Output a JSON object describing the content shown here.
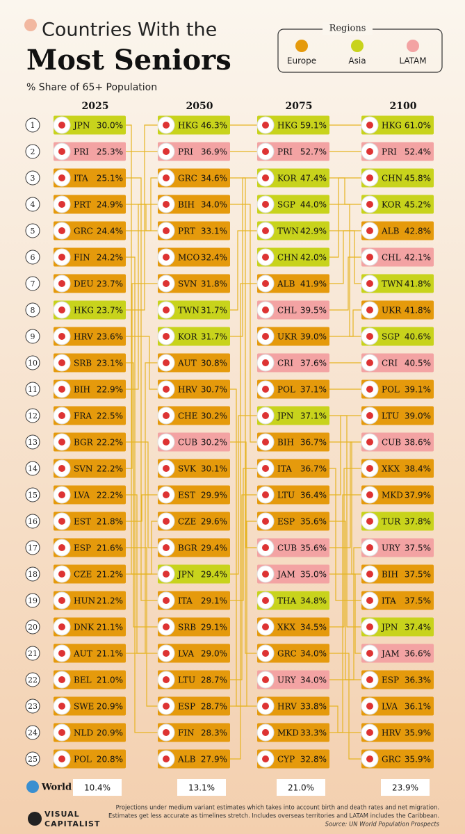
{
  "header": {
    "title_line1": "Countries With the",
    "title_line2": "Most Seniors",
    "subtitle": "% Share of 65+ Population"
  },
  "legend": {
    "title": "Regions",
    "items": [
      {
        "name": "Europe",
        "color": "#e59a0c"
      },
      {
        "name": "Asia",
        "color": "#c8d31c"
      },
      {
        "name": "LATAM",
        "color": "#f3a3a3"
      }
    ]
  },
  "ranks": [
    1,
    2,
    3,
    4,
    5,
    6,
    7,
    8,
    9,
    10,
    11,
    12,
    13,
    14,
    15,
    16,
    17,
    18,
    19,
    20,
    21,
    22,
    23,
    24,
    25
  ],
  "columns": [
    {
      "year": "2025",
      "entries": [
        {
          "code": "JPN",
          "value": "30.0%",
          "region": "Asia"
        },
        {
          "code": "PRI",
          "value": "25.3%",
          "region": "LATAM"
        },
        {
          "code": "ITA",
          "value": "25.1%",
          "region": "Europe"
        },
        {
          "code": "PRT",
          "value": "24.9%",
          "region": "Europe"
        },
        {
          "code": "GRC",
          "value": "24.4%",
          "region": "Europe"
        },
        {
          "code": "FIN",
          "value": "24.2%",
          "region": "Europe"
        },
        {
          "code": "DEU",
          "value": "23.7%",
          "region": "Europe"
        },
        {
          "code": "HKG",
          "value": "23.7%",
          "region": "Asia"
        },
        {
          "code": "HRV",
          "value": "23.6%",
          "region": "Europe"
        },
        {
          "code": "SRB",
          "value": "23.1%",
          "region": "Europe"
        },
        {
          "code": "BIH",
          "value": "22.9%",
          "region": "Europe"
        },
        {
          "code": "FRA",
          "value": "22.5%",
          "region": "Europe"
        },
        {
          "code": "BGR",
          "value": "22.2%",
          "region": "Europe"
        },
        {
          "code": "SVN",
          "value": "22.2%",
          "region": "Europe"
        },
        {
          "code": "LVA",
          "value": "22.2%",
          "region": "Europe"
        },
        {
          "code": "EST",
          "value": "21.8%",
          "region": "Europe"
        },
        {
          "code": "ESP",
          "value": "21.6%",
          "region": "Europe"
        },
        {
          "code": "CZE",
          "value": "21.2%",
          "region": "Europe"
        },
        {
          "code": "HUN",
          "value": "21.2%",
          "region": "Europe"
        },
        {
          "code": "DNK",
          "value": "21.1%",
          "region": "Europe"
        },
        {
          "code": "AUT",
          "value": "21.1%",
          "region": "Europe"
        },
        {
          "code": "BEL",
          "value": "21.0%",
          "region": "Europe"
        },
        {
          "code": "SWE",
          "value": "20.9%",
          "region": "Europe"
        },
        {
          "code": "NLD",
          "value": "20.9%",
          "region": "Europe"
        },
        {
          "code": "POL",
          "value": "20.8%",
          "region": "Europe"
        }
      ]
    },
    {
      "year": "2050",
      "entries": [
        {
          "code": "HKG",
          "value": "46.3%",
          "region": "Asia"
        },
        {
          "code": "PRI",
          "value": "36.9%",
          "region": "LATAM"
        },
        {
          "code": "GRC",
          "value": "34.6%",
          "region": "Europe"
        },
        {
          "code": "BIH",
          "value": "34.0%",
          "region": "Europe"
        },
        {
          "code": "PRT",
          "value": "33.1%",
          "region": "Europe"
        },
        {
          "code": "MCO",
          "value": "32.4%",
          "region": "Europe"
        },
        {
          "code": "SVN",
          "value": "31.8%",
          "region": "Europe"
        },
        {
          "code": "TWN",
          "value": "31.7%",
          "region": "Asia"
        },
        {
          "code": "KOR",
          "value": "31.7%",
          "region": "Asia"
        },
        {
          "code": "AUT",
          "value": "30.8%",
          "region": "Europe"
        },
        {
          "code": "HRV",
          "value": "30.7%",
          "region": "Europe"
        },
        {
          "code": "CHE",
          "value": "30.2%",
          "region": "Europe"
        },
        {
          "code": "CUB",
          "value": "30.2%",
          "region": "LATAM"
        },
        {
          "code": "SVK",
          "value": "30.1%",
          "region": "Europe"
        },
        {
          "code": "EST",
          "value": "29.9%",
          "region": "Europe"
        },
        {
          "code": "CZE",
          "value": "29.6%",
          "region": "Europe"
        },
        {
          "code": "BGR",
          "value": "29.4%",
          "region": "Europe"
        },
        {
          "code": "JPN",
          "value": "29.4%",
          "region": "Asia"
        },
        {
          "code": "ITA",
          "value": "29.1%",
          "region": "Europe"
        },
        {
          "code": "SRB",
          "value": "29.1%",
          "region": "Europe"
        },
        {
          "code": "LVA",
          "value": "29.0%",
          "region": "Europe"
        },
        {
          "code": "LTU",
          "value": "28.7%",
          "region": "Europe"
        },
        {
          "code": "ESP",
          "value": "28.7%",
          "region": "Europe"
        },
        {
          "code": "FIN",
          "value": "28.3%",
          "region": "Europe"
        },
        {
          "code": "ALB",
          "value": "27.9%",
          "region": "Europe"
        }
      ]
    },
    {
      "year": "2075",
      "entries": [
        {
          "code": "HKG",
          "value": "59.1%",
          "region": "Asia"
        },
        {
          "code": "PRI",
          "value": "52.7%",
          "region": "LATAM"
        },
        {
          "code": "KOR",
          "value": "47.4%",
          "region": "Asia"
        },
        {
          "code": "SGP",
          "value": "44.0%",
          "region": "Asia"
        },
        {
          "code": "TWN",
          "value": "42.9%",
          "region": "Asia"
        },
        {
          "code": "CHN",
          "value": "42.0%",
          "region": "Asia"
        },
        {
          "code": "ALB",
          "value": "41.9%",
          "region": "Europe"
        },
        {
          "code": "CHL",
          "value": "39.5%",
          "region": "LATAM"
        },
        {
          "code": "UKR",
          "value": "39.0%",
          "region": "Europe"
        },
        {
          "code": "CRI",
          "value": "37.6%",
          "region": "LATAM"
        },
        {
          "code": "POL",
          "value": "37.1%",
          "region": "Europe"
        },
        {
          "code": "JPN",
          "value": "37.1%",
          "region": "Asia"
        },
        {
          "code": "BIH",
          "value": "36.7%",
          "region": "Europe"
        },
        {
          "code": "ITA",
          "value": "36.7%",
          "region": "Europe"
        },
        {
          "code": "LTU",
          "value": "36.4%",
          "region": "Europe"
        },
        {
          "code": "ESP",
          "value": "35.6%",
          "region": "Europe"
        },
        {
          "code": "CUB",
          "value": "35.6%",
          "region": "LATAM"
        },
        {
          "code": "JAM",
          "value": "35.0%",
          "region": "LATAM"
        },
        {
          "code": "THA",
          "value": "34.8%",
          "region": "Asia"
        },
        {
          "code": "XKX",
          "value": "34.5%",
          "region": "Europe"
        },
        {
          "code": "GRC",
          "value": "34.0%",
          "region": "Europe"
        },
        {
          "code": "URY",
          "value": "34.0%",
          "region": "LATAM"
        },
        {
          "code": "HRV",
          "value": "33.8%",
          "region": "Europe"
        },
        {
          "code": "MKD",
          "value": "33.3%",
          "region": "Europe"
        },
        {
          "code": "CYP",
          "value": "32.8%",
          "region": "Europe"
        }
      ]
    },
    {
      "year": "2100",
      "entries": [
        {
          "code": "HKG",
          "value": "61.0%",
          "region": "Asia"
        },
        {
          "code": "PRI",
          "value": "52.4%",
          "region": "LATAM"
        },
        {
          "code": "CHN",
          "value": "45.8%",
          "region": "Asia"
        },
        {
          "code": "KOR",
          "value": "45.2%",
          "region": "Asia"
        },
        {
          "code": "ALB",
          "value": "42.8%",
          "region": "Europe"
        },
        {
          "code": "CHL",
          "value": "42.1%",
          "region": "LATAM"
        },
        {
          "code": "TWN",
          "value": "41.8%",
          "region": "Asia"
        },
        {
          "code": "UKR",
          "value": "41.8%",
          "region": "Europe"
        },
        {
          "code": "SGP",
          "value": "40.6%",
          "region": "Asia"
        },
        {
          "code": "CRI",
          "value": "40.5%",
          "region": "LATAM"
        },
        {
          "code": "POL",
          "value": "39.1%",
          "region": "Europe"
        },
        {
          "code": "LTU",
          "value": "39.0%",
          "region": "Europe"
        },
        {
          "code": "CUB",
          "value": "38.6%",
          "region": "LATAM"
        },
        {
          "code": "XKX",
          "value": "38.4%",
          "region": "Europe"
        },
        {
          "code": "MKD",
          "value": "37.9%",
          "region": "Europe"
        },
        {
          "code": "TUR",
          "value": "37.8%",
          "region": "Asia"
        },
        {
          "code": "URY",
          "value": "37.5%",
          "region": "LATAM"
        },
        {
          "code": "BIH",
          "value": "37.5%",
          "region": "Europe"
        },
        {
          "code": "ITA",
          "value": "37.5%",
          "region": "Europe"
        },
        {
          "code": "JPN",
          "value": "37.4%",
          "region": "Asia"
        },
        {
          "code": "JAM",
          "value": "36.6%",
          "region": "LATAM"
        },
        {
          "code": "ESP",
          "value": "36.3%",
          "region": "Europe"
        },
        {
          "code": "LVA",
          "value": "36.1%",
          "region": "Europe"
        },
        {
          "code": "HRV",
          "value": "35.9%",
          "region": "Europe"
        },
        {
          "code": "GRC",
          "value": "35.9%",
          "region": "Europe"
        }
      ]
    }
  ],
  "world": {
    "label": "World",
    "values": [
      "10.4%",
      "13.1%",
      "21.0%",
      "23.9%"
    ]
  },
  "footer": {
    "logo_line1": "VISUAL",
    "logo_line2": "CAPITALIST",
    "notes": [
      "Projections under medium variant estimates which takes into account birth and death rates and net migration.",
      "Estimates get less accurate as timelines stretch. Includes overseas territories and LATAM includes the Caribbean."
    ],
    "source": "Source: UN World Population Prospects"
  }
}
